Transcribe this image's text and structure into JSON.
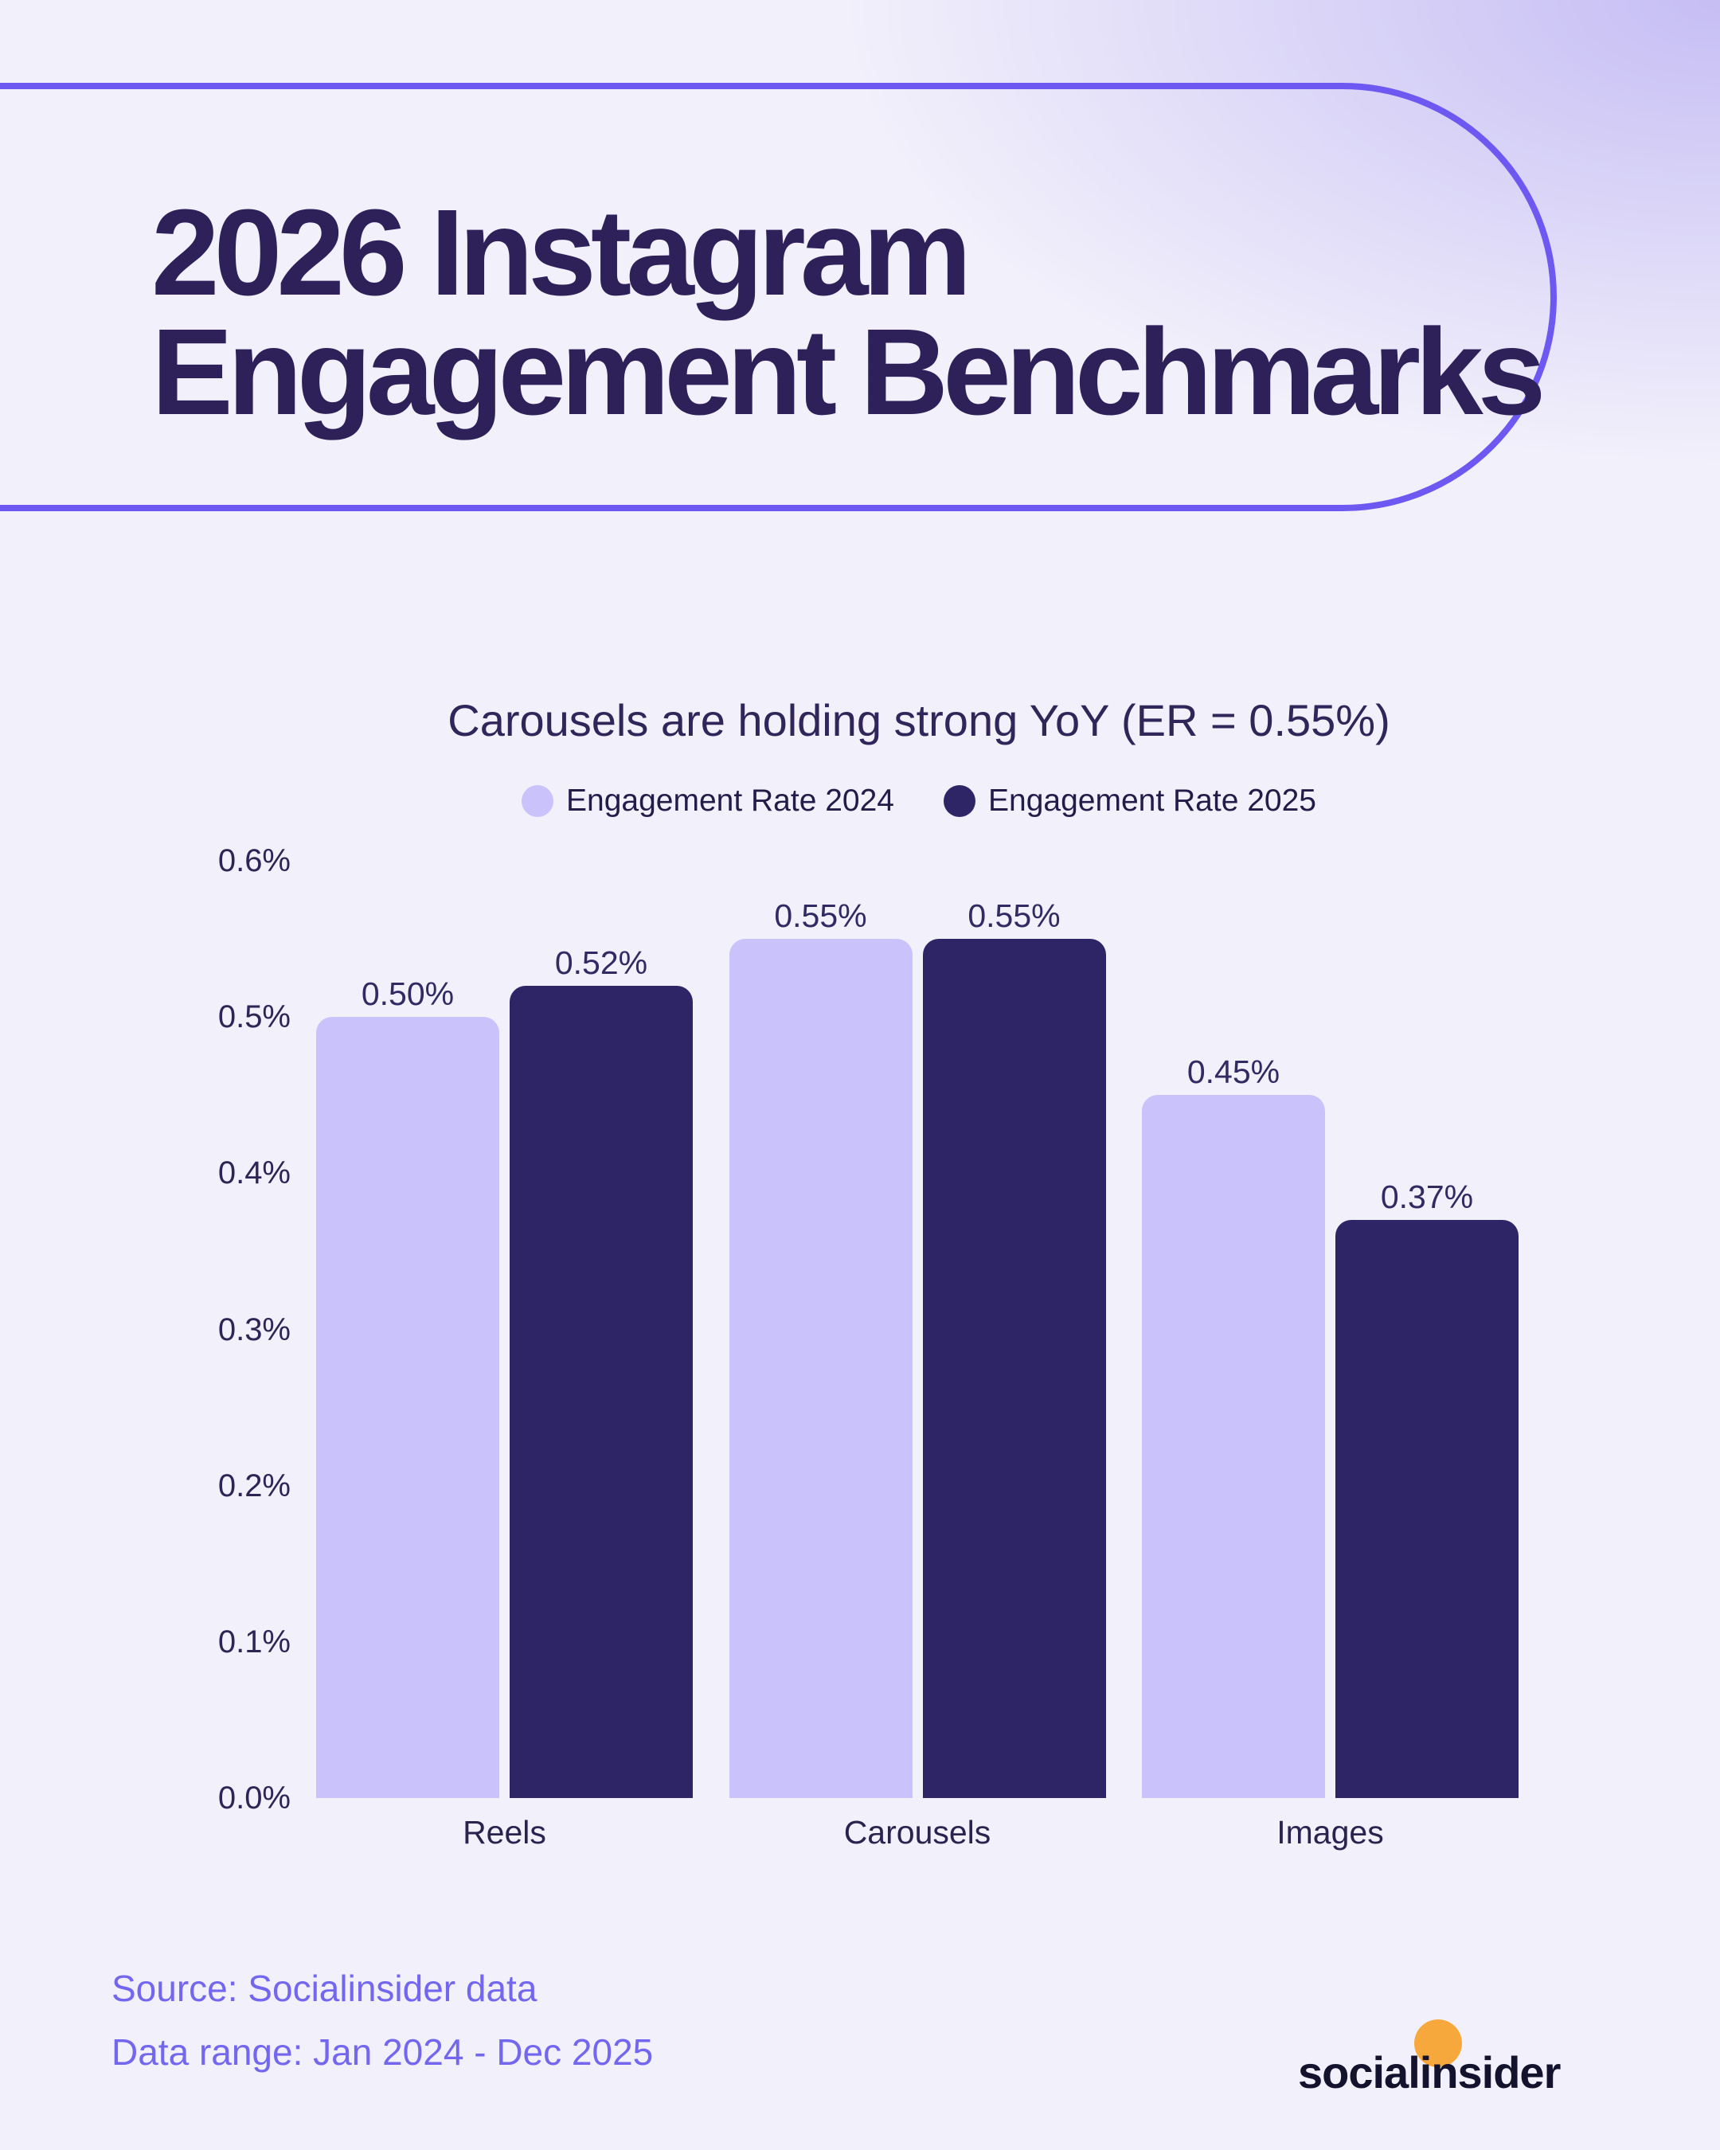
{
  "header": {
    "title_line1": "2026 Instagram",
    "title_line2": "Engagement Benchmarks"
  },
  "chart": {
    "title": "Carousels are holding strong YoY (ER = 0.55%)"
  },
  "chart_data": {
    "type": "bar",
    "title": "Carousels are holding strong YoY (ER = 0.55%)",
    "categories": [
      "Reels",
      "Carousels",
      "Images"
    ],
    "series": [
      {
        "name": "Engagement Rate 2024",
        "values": [
          0.5,
          0.55,
          0.45
        ],
        "labels": [
          "0.50%",
          "0.55%",
          "0.45%"
        ],
        "color": "#c9c2fb"
      },
      {
        "name": "Engagement Rate 2025",
        "values": [
          0.52,
          0.55,
          0.37
        ],
        "labels": [
          "0.52%",
          "0.55%",
          "0.37%"
        ],
        "color": "#2d2566"
      }
    ],
    "xlabel": "",
    "ylabel": "",
    "ylim": [
      0,
      0.6
    ],
    "yticks": [
      "0.6%",
      "0.5%",
      "0.4%",
      "0.3%",
      "0.2%",
      "0.1%",
      "0.0%"
    ],
    "grid": false,
    "legend_position": "top"
  },
  "footer": {
    "source": "Source: Socialinsider data",
    "range": "Data range: Jan 2024 - Dec 2025",
    "logo_text": "socialinsider"
  },
  "colors": {
    "background_base": "#f2f0fb",
    "background_tint_top_right": "#c6bef4",
    "accent_border": "#6e58f2",
    "heading_text": "#2e215a",
    "chart_text": "#2e2456",
    "bar_2024": "#c9c2fb",
    "bar_2025": "#2d2566",
    "footer_text": "#7366ef",
    "logo_text": "#14132d",
    "logo_orange": "#f6a83c"
  }
}
